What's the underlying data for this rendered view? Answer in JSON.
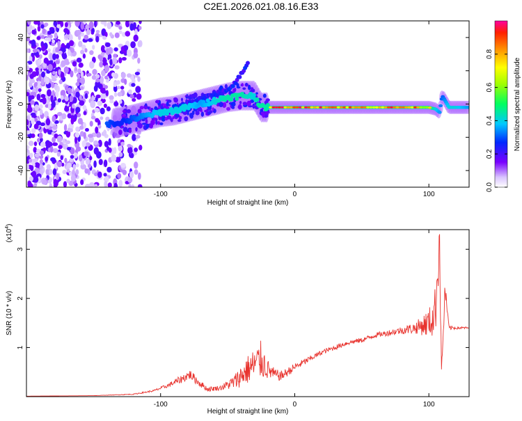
{
  "title": "C2E1.2026.021.08.16.E33",
  "colors": {
    "snr_line": "#e8332e",
    "ridge_low": "#6a00ff",
    "ridge_mid": "#00c8ff",
    "ridge_high": "#ff2020"
  },
  "chart_data": [
    {
      "type": "heatmap",
      "xlabel": "Height of straight line (km)",
      "ylabel": "Frequency (Hz)",
      "xlim": [
        -200,
        130
      ],
      "ylim": [
        -50,
        50
      ],
      "xticks": [
        -100,
        0,
        100
      ],
      "yticks": [
        -40,
        -20,
        0,
        20,
        40
      ],
      "colorbar": {
        "label": "Normalized spectral amplitude",
        "range": [
          0,
          1
        ],
        "ticks": [
          0.0,
          0.2,
          0.4,
          0.6,
          0.8
        ]
      },
      "ridge": {
        "x": [
          -140,
          -130,
          -120,
          -110,
          -100,
          -90,
          -80,
          -70,
          -60,
          -50,
          -40,
          -30,
          -25,
          -20,
          0,
          20,
          40,
          60,
          80,
          100,
          105,
          108,
          110,
          115,
          120,
          130
        ],
        "y": [
          -12,
          -11,
          -9,
          -7,
          -5,
          -4,
          -2,
          0,
          2,
          4,
          5,
          5,
          -2,
          -2,
          -2,
          -2,
          -2,
          -2,
          -2,
          -2,
          -3,
          -5,
          5,
          -2,
          -2,
          -2
        ],
        "amplitude": [
          0.3,
          0.25,
          0.3,
          0.35,
          0.4,
          0.4,
          0.4,
          0.35,
          0.4,
          0.45,
          0.45,
          0.4,
          0.5,
          0.85,
          0.9,
          0.9,
          0.8,
          0.8,
          0.85,
          0.7,
          0.4,
          0.35,
          0.3,
          0.4,
          0.4,
          0.35
        ]
      },
      "upper_branch": {
        "x": [
          -90,
          -80,
          -70,
          -60,
          -50,
          -45,
          -40,
          -35
        ],
        "y": [
          -2,
          0,
          3,
          6,
          8,
          12,
          18,
          24
        ]
      },
      "noise_region": [
        -200,
        -115
      ]
    },
    {
      "type": "line",
      "xlabel": "Height of straight line (km)",
      "ylabel": "SNR (10 * v/v)",
      "y_multiplier": "(x10",
      "y_multiplier_exp": "4",
      "xlim": [
        -200,
        130
      ],
      "ylim": [
        0,
        3.4
      ],
      "xticks": [
        -100,
        0,
        100
      ],
      "yticks": [
        1,
        2,
        3
      ],
      "series": [
        {
          "x": [
            -200,
            -150,
            -120,
            -105,
            -95,
            -85,
            -78,
            -72,
            -65,
            -55,
            -45,
            -35,
            -30,
            -25,
            -20,
            -15,
            -10,
            0,
            10,
            20,
            30,
            40,
            50,
            60,
            70,
            80,
            90,
            95,
            100,
            103,
            105,
            107,
            108,
            109,
            110,
            111,
            112,
            115,
            120,
            130
          ],
          "y": [
            0.01,
            0.02,
            0.05,
            0.12,
            0.22,
            0.35,
            0.45,
            0.3,
            0.15,
            0.18,
            0.3,
            0.55,
            0.65,
            0.75,
            0.55,
            0.45,
            0.42,
            0.6,
            0.75,
            0.9,
            1.0,
            1.1,
            1.15,
            1.25,
            1.3,
            1.35,
            1.4,
            1.45,
            1.5,
            1.6,
            1.8,
            2.8,
            3.3,
            1.0,
            0.6,
            1.5,
            2.2,
            1.4,
            1.4,
            1.4
          ],
          "noise_amp": [
            0.0,
            0.0,
            0.01,
            0.02,
            0.04,
            0.08,
            0.1,
            0.08,
            0.05,
            0.05,
            0.15,
            0.3,
            0.35,
            0.4,
            0.2,
            0.12,
            0.1,
            0.08,
            0.06,
            0.05,
            0.05,
            0.05,
            0.05,
            0.05,
            0.06,
            0.08,
            0.12,
            0.2,
            0.3,
            0.4,
            0.5,
            0.6,
            0.4,
            0.4,
            0.3,
            0.3,
            0.2,
            0.05,
            0.03,
            0.02
          ]
        }
      ]
    }
  ]
}
